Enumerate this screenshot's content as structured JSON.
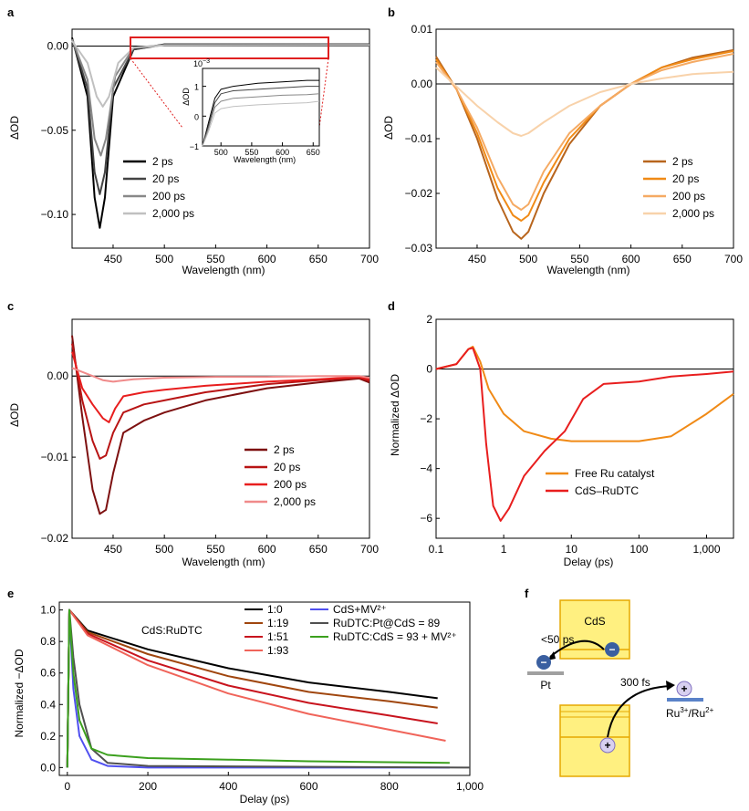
{
  "panel_labels": [
    "a",
    "b",
    "c",
    "d",
    "e",
    "f"
  ],
  "colors": {
    "a": [
      "#000000",
      "#444444",
      "#888888",
      "#c0c0c0"
    ],
    "b": [
      "#b8651d",
      "#f08a16",
      "#f5aa63",
      "#f8d2aa"
    ],
    "c": [
      "#7d1010",
      "#b81414",
      "#e81e1e",
      "#f08a8a"
    ],
    "d": [
      "#f08a16",
      "#e81e1e"
    ],
    "e": [
      "#000000",
      "#a0460e",
      "#c8141e",
      "#f0645a",
      "#5050f0",
      "#505050",
      "#3ca01e"
    ],
    "inset_box": "#e02020",
    "cds_fill": "#fff080",
    "cds_border": "#e6a800",
    "level": "#5a82c8",
    "pt": "#a0a0a0"
  },
  "chart_data": [
    {
      "id": "a",
      "type": "line",
      "xlabel": "Wavelength (nm)",
      "ylabel": "ΔOD",
      "xlim": [
        410,
        700
      ],
      "ylim": [
        -0.12,
        0.01
      ],
      "xticks": [
        "450",
        "500",
        "550",
        "600",
        "650",
        "700"
      ],
      "yticks": [
        "0.00",
        "−0.05",
        "−0.10"
      ],
      "series": [
        {
          "name": "2 ps",
          "x": [
            410,
            425,
            432,
            437,
            442,
            450,
            470,
            500,
            700
          ],
          "y": [
            0.005,
            -0.03,
            -0.09,
            -0.108,
            -0.09,
            -0.03,
            -0.002,
            0.001,
            0.001
          ]
        },
        {
          "name": "20 ps",
          "x": [
            410,
            425,
            432,
            437,
            442,
            450,
            470,
            500,
            700
          ],
          "y": [
            0.004,
            -0.025,
            -0.075,
            -0.088,
            -0.075,
            -0.025,
            -0.002,
            0.0008,
            0.0009
          ]
        },
        {
          "name": "200 ps",
          "x": [
            410,
            425,
            432,
            438,
            443,
            452,
            470,
            500,
            700
          ],
          "y": [
            0.004,
            -0.02,
            -0.055,
            -0.065,
            -0.055,
            -0.018,
            -0.001,
            0.0006,
            0.0007
          ]
        },
        {
          "name": "2,000 ps",
          "x": [
            410,
            425,
            434,
            440,
            446,
            455,
            470,
            500,
            700
          ],
          "y": [
            0.003,
            -0.01,
            -0.03,
            -0.036,
            -0.03,
            -0.01,
            -0.001,
            0.0004,
            0.0005
          ]
        }
      ],
      "inset": {
        "xlabel": "Wavelength (nm)",
        "ylabel": "ΔOD",
        "exponent": "10",
        "exponent_power": "−3",
        "xlim": [
          470,
          660
        ],
        "ylim": [
          -1,
          1.6
        ],
        "xticks": [
          "500",
          "550",
          "600",
          "650"
        ],
        "yticks": [
          "1",
          "0",
          "−1"
        ],
        "series": [
          {
            "x": [
              470,
              480,
              490,
              500,
              520,
              560,
              600,
              640,
              660
            ],
            "y": [
              -1,
              -0.2,
              0.6,
              0.9,
              1.0,
              1.1,
              1.15,
              1.2,
              1.2
            ]
          },
          {
            "x": [
              470,
              480,
              490,
              500,
              520,
              560,
              600,
              640,
              660
            ],
            "y": [
              -1,
              -0.3,
              0.45,
              0.75,
              0.85,
              0.9,
              0.95,
              1.0,
              1.0
            ]
          },
          {
            "x": [
              470,
              480,
              490,
              500,
              520,
              560,
              600,
              640,
              660
            ],
            "y": [
              -1,
              -0.4,
              0.3,
              0.5,
              0.6,
              0.65,
              0.7,
              0.72,
              0.75
            ]
          },
          {
            "x": [
              470,
              480,
              490,
              500,
              520,
              560,
              600,
              640,
              660
            ],
            "y": [
              -1,
              -0.5,
              0.1,
              0.25,
              0.32,
              0.38,
              0.42,
              0.45,
              0.5
            ]
          }
        ]
      }
    },
    {
      "id": "b",
      "type": "line",
      "xlabel": "Wavelength (nm)",
      "ylabel": "ΔOD",
      "xlim": [
        410,
        700
      ],
      "ylim": [
        -0.03,
        0.01
      ],
      "xticks": [
        "450",
        "500",
        "550",
        "600",
        "650",
        "700"
      ],
      "yticks": [
        "0.01",
        "0.00",
        "−0.01",
        "−0.02",
        "−0.03"
      ],
      "series": [
        {
          "name": "2 ps",
          "x": [
            410,
            430,
            450,
            470,
            485,
            493,
            500,
            515,
            540,
            570,
            600,
            630,
            660,
            700
          ],
          "y": [
            0.005,
            -0.001,
            -0.01,
            -0.021,
            -0.027,
            -0.0283,
            -0.027,
            -0.02,
            -0.011,
            -0.004,
            0.0,
            0.003,
            0.0048,
            0.0062
          ]
        },
        {
          "name": "20 ps",
          "x": [
            410,
            430,
            450,
            470,
            485,
            493,
            500,
            515,
            540,
            570,
            600,
            630,
            660,
            700
          ],
          "y": [
            0.0045,
            -0.001,
            -0.009,
            -0.019,
            -0.024,
            -0.025,
            -0.024,
            -0.018,
            -0.01,
            -0.004,
            0.0,
            0.003,
            0.0045,
            0.006
          ]
        },
        {
          "name": "200 ps",
          "x": [
            410,
            430,
            450,
            470,
            485,
            493,
            500,
            515,
            540,
            570,
            600,
            630,
            660,
            700
          ],
          "y": [
            0.004,
            -0.001,
            -0.008,
            -0.017,
            -0.022,
            -0.023,
            -0.022,
            -0.016,
            -0.009,
            -0.004,
            0.0,
            0.0025,
            0.004,
            0.0055
          ]
        },
        {
          "name": "2,000 ps",
          "x": [
            410,
            430,
            450,
            470,
            485,
            493,
            500,
            515,
            540,
            570,
            600,
            630,
            660,
            700
          ],
          "y": [
            0.003,
            -0.0005,
            -0.004,
            -0.007,
            -0.009,
            -0.0095,
            -0.009,
            -0.007,
            -0.004,
            -0.0015,
            0.0,
            0.001,
            0.0018,
            0.0022
          ]
        }
      ]
    },
    {
      "id": "c",
      "type": "line",
      "xlabel": "Wavelength (nm)",
      "ylabel": "ΔOD",
      "xlim": [
        410,
        700
      ],
      "ylim": [
        -0.02,
        0.007
      ],
      "xticks": [
        "450",
        "500",
        "550",
        "600",
        "650",
        "700"
      ],
      "yticks": [
        "0.00",
        "−0.01",
        "−0.02"
      ],
      "series": [
        {
          "name": "2 ps",
          "x": [
            410,
            420,
            430,
            437,
            443,
            450,
            460,
            480,
            500,
            540,
            600,
            650,
            690,
            700
          ],
          "y": [
            0.005,
            -0.005,
            -0.014,
            -0.017,
            -0.0165,
            -0.012,
            -0.007,
            -0.0055,
            -0.0045,
            -0.003,
            -0.0015,
            -0.0008,
            -0.0003,
            -0.0008
          ]
        },
        {
          "name": "20 ps",
          "x": [
            410,
            420,
            430,
            437,
            443,
            450,
            460,
            480,
            500,
            540,
            600,
            650,
            690,
            700
          ],
          "y": [
            0.004,
            -0.003,
            -0.008,
            -0.0102,
            -0.0098,
            -0.007,
            -0.0045,
            -0.0035,
            -0.003,
            -0.002,
            -0.001,
            -0.0005,
            -0.0002,
            -0.0006
          ]
        },
        {
          "name": "200 ps",
          "x": [
            410,
            420,
            430,
            440,
            446,
            452,
            460,
            480,
            500,
            540,
            600,
            650,
            690,
            700
          ],
          "y": [
            0.003,
            -0.0015,
            -0.0035,
            -0.0052,
            -0.0057,
            -0.004,
            -0.0025,
            -0.002,
            -0.0017,
            -0.0012,
            -0.0007,
            -0.0004,
            -0.0001,
            -0.0004
          ]
        },
        {
          "name": "2,000 ps",
          "x": [
            410,
            430,
            440,
            450,
            470,
            500,
            550,
            600,
            650,
            690,
            700
          ],
          "y": [
            0.001,
            0.0,
            -0.0005,
            -0.0007,
            -0.0004,
            -0.0002,
            -0.0001,
            -0.0001,
            0.0,
            0.0,
            -0.0002
          ]
        }
      ]
    },
    {
      "id": "d",
      "type": "line",
      "xlabel": "Delay (ps)",
      "ylabel": "Normalized ΔOD",
      "xscale": "log",
      "xlim": [
        0.1,
        2500
      ],
      "ylim": [
        -6.8,
        2
      ],
      "xticks": [
        "0.1",
        "1",
        "10",
        "100",
        "1,000"
      ],
      "yticks": [
        "2",
        "0",
        "−2",
        "−4",
        "−6"
      ],
      "series": [
        {
          "name": "Free Ru catalyst",
          "x": [
            0.1,
            0.2,
            0.3,
            0.35,
            0.45,
            0.6,
            1.0,
            2.0,
            5.0,
            10,
            30,
            100,
            300,
            1000,
            2500
          ],
          "y": [
            0.0,
            0.2,
            0.8,
            0.9,
            0.3,
            -0.8,
            -1.8,
            -2.5,
            -2.8,
            -2.9,
            -2.9,
            -2.9,
            -2.7,
            -1.8,
            -1.0
          ]
        },
        {
          "name": "CdS–RuDTC",
          "x": [
            0.1,
            0.2,
            0.3,
            0.35,
            0.45,
            0.55,
            0.7,
            0.9,
            1.2,
            2.0,
            4.0,
            8.0,
            15,
            30,
            100,
            300,
            1000,
            2500
          ],
          "y": [
            0.0,
            0.2,
            0.8,
            0.85,
            0.0,
            -3.0,
            -5.5,
            -6.1,
            -5.6,
            -4.3,
            -3.3,
            -2.5,
            -1.2,
            -0.6,
            -0.5,
            -0.3,
            -0.2,
            -0.1
          ]
        }
      ]
    },
    {
      "id": "e",
      "type": "line",
      "xlabel": "Delay (ps)",
      "ylabel": "Normalized −ΔOD",
      "xlim": [
        -20,
        1000
      ],
      "ylim": [
        -0.05,
        1.05
      ],
      "xticks": [
        "0",
        "200",
        "400",
        "600",
        "800",
        "1,000"
      ],
      "yticks": [
        "0.0",
        "0.2",
        "0.4",
        "0.6",
        "0.8",
        "1.0"
      ],
      "annotation": "CdS:RuDTC",
      "series": [
        {
          "name": "1:0",
          "x": [
            0,
            5,
            50,
            200,
            400,
            600,
            800,
            920
          ],
          "y": [
            0,
            1.0,
            0.87,
            0.75,
            0.63,
            0.54,
            0.48,
            0.44
          ]
        },
        {
          "name": "1:19",
          "x": [
            0,
            5,
            50,
            200,
            400,
            600,
            800,
            920
          ],
          "y": [
            0,
            1.0,
            0.86,
            0.72,
            0.58,
            0.48,
            0.42,
            0.38
          ]
        },
        {
          "name": "1:51",
          "x": [
            0,
            5,
            50,
            200,
            400,
            600,
            800,
            920
          ],
          "y": [
            0,
            1.0,
            0.85,
            0.68,
            0.52,
            0.41,
            0.33,
            0.28
          ]
        },
        {
          "name": "1:93",
          "x": [
            0,
            5,
            50,
            200,
            400,
            600,
            800,
            940
          ],
          "y": [
            0,
            1.0,
            0.84,
            0.65,
            0.47,
            0.34,
            0.24,
            0.17
          ]
        },
        {
          "name": "CdS+MV²⁺",
          "x": [
            0,
            5,
            15,
            30,
            60,
            100,
            200,
            950
          ],
          "y": [
            0,
            1.0,
            0.5,
            0.2,
            0.05,
            0.01,
            0.0,
            0.0
          ]
        },
        {
          "name": "RuDTC:Pt@CdS = 89",
          "x": [
            0,
            5,
            15,
            30,
            60,
            100,
            200,
            1000
          ],
          "y": [
            0,
            1.0,
            0.7,
            0.4,
            0.12,
            0.03,
            0.01,
            0.0
          ]
        },
        {
          "name": "RuDTC:CdS = 93 + MV²⁺",
          "x": [
            0,
            5,
            15,
            30,
            60,
            100,
            200,
            400,
            600,
            950
          ],
          "y": [
            0,
            1.0,
            0.6,
            0.3,
            0.12,
            0.08,
            0.06,
            0.05,
            0.04,
            0.03
          ]
        }
      ]
    }
  ],
  "panel_f": {
    "cds_label": "CdS",
    "time_left": "<50 ps",
    "pt_label": "Pt",
    "time_right": "300 fs",
    "ru_label": "Ru",
    "ru_sup1": "3+",
    "ru_slash": "/Ru",
    "ru_sup2": "2+",
    "electron_symbol": "−",
    "hole_symbol": "+"
  }
}
